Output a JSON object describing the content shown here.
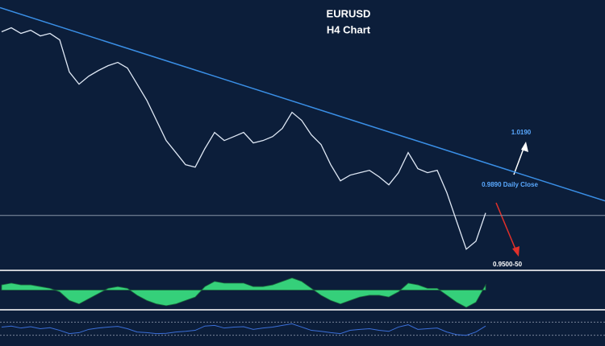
{
  "chart_data": [
    {
      "type": "line",
      "title": "EURUSD",
      "subtitle": "H4 Chart",
      "ylim": [
        0.943,
        1.172
      ],
      "daily_close": 0.989,
      "trendline": [
        1.1655,
        1.0013
      ],
      "trendline_color": "#3a8fe6",
      "annotations": [
        "1.0190",
        "0.9890 Daily Close",
        "0.9500-50"
      ],
      "series": [
        {
          "name": "EURUSD",
          "color": "#dfe8f5",
          "values": [
            1.145,
            1.1484,
            1.1436,
            1.1463,
            1.1415,
            1.1436,
            1.1381,
            1.1108,
            1.1005,
            1.1073,
            1.1121,
            1.1162,
            1.119,
            1.1142,
            1.1005,
            1.0868,
            1.0697,
            1.0526,
            1.0424,
            1.0321,
            1.03,
            1.0458,
            1.0595,
            1.0526,
            1.056,
            1.0595,
            1.0506,
            1.0526,
            1.056,
            1.0629,
            1.0766,
            1.0697,
            1.0574,
            1.0492,
            1.0321,
            1.0184,
            1.0232,
            1.0253,
            1.0273,
            1.0218,
            1.015,
            1.0253,
            1.0424,
            1.0287,
            1.0253,
            1.0273,
            1.0082,
            0.9842,
            0.9603,
            0.9671,
            0.9911
          ]
        }
      ]
    },
    {
      "type": "area",
      "ylim": [
        -1,
        1
      ],
      "color": "#35d07a",
      "values": [
        0.3,
        0.4,
        0.3,
        0.3,
        0.2,
        0.1,
        -0.1,
        -0.6,
        -0.8,
        -0.5,
        -0.2,
        0.1,
        0.2,
        0.1,
        -0.3,
        -0.6,
        -0.8,
        -0.9,
        -0.8,
        -0.6,
        -0.4,
        0.2,
        0.5,
        0.4,
        0.4,
        0.4,
        0.2,
        0.2,
        0.3,
        0.5,
        0.7,
        0.5,
        0.1,
        -0.3,
        -0.6,
        -0.8,
        -0.6,
        -0.4,
        -0.3,
        -0.3,
        -0.4,
        -0.1,
        0.4,
        0.3,
        0.1,
        0.1,
        -0.3,
        -0.7,
        -1.0,
        -0.7,
        0.3
      ]
    },
    {
      "type": "line",
      "ylim": [
        0,
        100
      ],
      "levels": [
        70,
        30
      ],
      "color": "#3b6fd8",
      "values": [
        55,
        58,
        52,
        56,
        50,
        53,
        45,
        35,
        38,
        48,
        52,
        55,
        57,
        50,
        40,
        38,
        35,
        36,
        40,
        42,
        45,
        58,
        60,
        52,
        55,
        56,
        48,
        52,
        55,
        60,
        65,
        55,
        45,
        42,
        38,
        35,
        45,
        48,
        50,
        45,
        42,
        55,
        62,
        48,
        50,
        52,
        40,
        32,
        30,
        40,
        58
      ]
    }
  ]
}
